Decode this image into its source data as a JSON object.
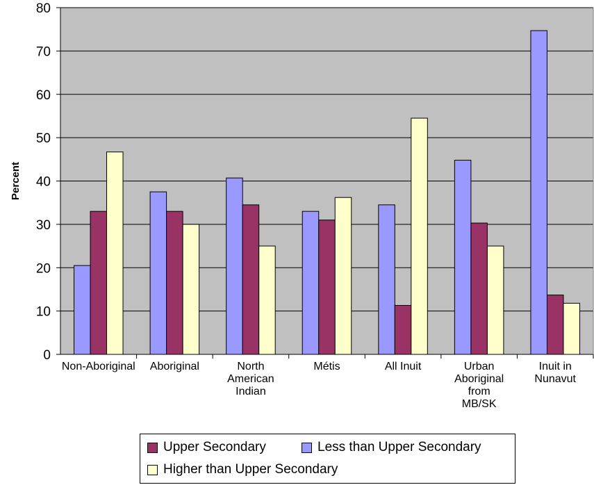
{
  "chart_data": {
    "type": "bar",
    "ylabel": "Percent",
    "xlabel": "",
    "ylim": [
      0,
      80
    ],
    "yticks": [
      0,
      10,
      20,
      30,
      40,
      50,
      60,
      70,
      80
    ],
    "grid": true,
    "legend_position": "bottom",
    "categories": [
      [
        "Non-Aboriginal"
      ],
      [
        "Aboriginal"
      ],
      [
        "North",
        "American",
        "Indian"
      ],
      [
        "Métis"
      ],
      [
        "All Inuit"
      ],
      [
        "Urban",
        "Aboriginal",
        "from",
        "MB/SK"
      ],
      [
        "Inuit in",
        "Nunavut"
      ]
    ],
    "series": [
      {
        "name": "Less than Upper Secondary",
        "color": "#9999ff",
        "values": [
          20.5,
          37.5,
          40.7,
          33,
          34.5,
          44.8,
          74.7
        ]
      },
      {
        "name": "Upper Secondary",
        "color": "#993366",
        "values": [
          33,
          33,
          34.5,
          31,
          11.3,
          30.3,
          13.7
        ]
      },
      {
        "name": "Higher than Upper Secondary",
        "color": "#ffffcc",
        "values": [
          46.7,
          30,
          25,
          36.2,
          54.5,
          25,
          11.8
        ]
      }
    ]
  },
  "legend": {
    "items": [
      {
        "label": "Upper Secondary",
        "color": "#993366"
      },
      {
        "label": "Less than Upper Secondary",
        "color": "#9999ff"
      },
      {
        "label": "Higher than Upper Secondary",
        "color": "#ffffcc"
      }
    ]
  },
  "colors": {
    "plot_background": "#c0c0c0",
    "gridline": "#000000"
  }
}
